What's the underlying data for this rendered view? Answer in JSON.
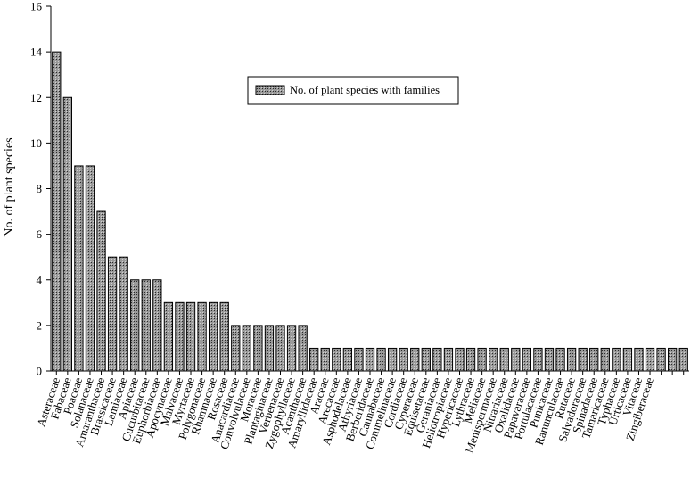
{
  "chart_data": {
    "type": "bar",
    "title": "",
    "xlabel": "",
    "ylabel": "No. of plant species",
    "ylim": [
      0,
      16
    ],
    "yticks": [
      0,
      2,
      4,
      6,
      8,
      10,
      12,
      14,
      16
    ],
    "grid": false,
    "legend": {
      "placement": "top-center",
      "entries": [
        "No. of plant species with families"
      ]
    },
    "bar_fill": "hatched-gray",
    "series": [
      {
        "name": "No. of plant species with families",
        "values": [
          14,
          12,
          9,
          9,
          7,
          5,
          5,
          4,
          4,
          4,
          3,
          3,
          3,
          3,
          3,
          3,
          2,
          2,
          2,
          2,
          2,
          2,
          2,
          1,
          1,
          1,
          1,
          1,
          1,
          1,
          1,
          1,
          1,
          1,
          1,
          1,
          1,
          1,
          1,
          1,
          1,
          1,
          1,
          1,
          1,
          1,
          1,
          1,
          1,
          1,
          1,
          1,
          1,
          1,
          1,
          1,
          1
        ]
      }
    ],
    "categories": [
      "Asteraceae",
      "Fabaceae",
      "Poaceae",
      "Solanaceae",
      "Amaranthaceae",
      "Brassicaceae",
      "Lamiaceae",
      "Apiaceae",
      "Cucurbitaceae",
      "Euphorbiaceae",
      "Apocynaceae",
      "Malvaceae",
      "Myrtaceae",
      "Polygonaceae",
      "Rhamnaceae",
      "Rosaceae",
      "Anacardiaceae",
      "Convolvulaceae",
      "Moraceae",
      "Plantaginaceae",
      "Verbenaceae",
      "Zygophyllaceae",
      "Acanthaceae",
      "Amaryllidaceae",
      "Araceae",
      "Arecaceae",
      "Asphodelaceae",
      "Athyriaceae",
      "Berberidaceae",
      "Cannabaceae",
      "Commelinaceae",
      "Cordiaceae",
      "Cyperaceae",
      "Equisetaceae",
      "Geraniaceae",
      "Heliotropiaceae",
      "Hypericaceae",
      "Lythraceae",
      "Meliaceae",
      "Menispermaceae",
      "Nitrariaceae",
      "Oxalidaceae",
      "Papavaraceae",
      "Portulacaceae",
      "Punicaceae",
      "Ranunculaceae",
      "Rutaceae",
      "Salvadoraceae",
      "Spinadaceae",
      "Tamaricaceae",
      "Typhaceae",
      "Urticaceae",
      "Vitaceae",
      "Zingiberaceae",
      "",
      "",
      ""
    ]
  }
}
